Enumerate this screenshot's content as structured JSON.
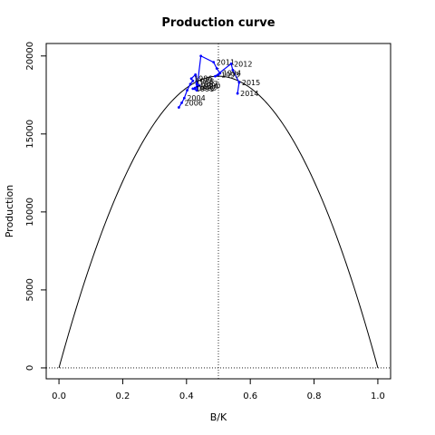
{
  "chart_data": {
    "type": "line",
    "title": "Production curve",
    "xlabel": "B/K",
    "ylabel": "Production",
    "xlim": [
      -0.04,
      1.04
    ],
    "ylim": [
      -700,
      20800
    ],
    "x_ticks": [
      0.0,
      0.2,
      0.4,
      0.6,
      0.8,
      1.0
    ],
    "x_tick_labels": [
      "0.0",
      "0.2",
      "0.4",
      "0.6",
      "0.8",
      "1.0"
    ],
    "y_ticks": [
      0,
      5000,
      10000,
      15000,
      20000
    ],
    "y_tick_labels": [
      "0",
      "5000",
      "10000",
      "15000",
      "20000"
    ],
    "reference_lines": {
      "bmsy_ratio": 0.5,
      "zero_production": 0
    },
    "curve": {
      "shape": "parabola",
      "msy": 18700,
      "color": "#000000"
    },
    "series": [
      {
        "color": "#0000ff",
        "points": [
          {
            "label": "",
            "x": 0.376,
            "y": 16700
          },
          {
            "label": "2006",
            "x": 0.385,
            "y": 17000
          },
          {
            "label": "2004",
            "x": 0.393,
            "y": 17300
          },
          {
            "label": "",
            "x": 0.402,
            "y": 17800
          },
          {
            "label": "",
            "x": 0.412,
            "y": 18200
          },
          {
            "label": "1988",
            "x": 0.42,
            "y": 18400
          },
          {
            "label": "1986",
            "x": 0.415,
            "y": 18550
          },
          {
            "label": "",
            "x": 0.428,
            "y": 18800
          },
          {
            "label": "1987",
            "x": 0.432,
            "y": 18200
          },
          {
            "label": "1990",
            "x": 0.44,
            "y": 18100
          },
          {
            "label": "1989",
            "x": 0.433,
            "y": 18050
          },
          {
            "label": "1992",
            "x": 0.427,
            "y": 17950
          },
          {
            "label": "1991",
            "x": 0.42,
            "y": 17900
          },
          {
            "label": "",
            "x": 0.432,
            "y": 17800
          },
          {
            "label": "",
            "x": 0.445,
            "y": 20000
          },
          {
            "label": "2011",
            "x": 0.485,
            "y": 19600
          },
          {
            "label": "",
            "x": 0.495,
            "y": 19200
          },
          {
            "label": "1994",
            "x": 0.505,
            "y": 18900
          },
          {
            "label": "1993",
            "x": 0.5,
            "y": 18800
          },
          {
            "label": "",
            "x": 0.49,
            "y": 18700
          },
          {
            "label": "2012",
            "x": 0.54,
            "y": 19500
          },
          {
            "label": "",
            "x": 0.545,
            "y": 19100
          },
          {
            "label": "2015",
            "x": 0.565,
            "y": 18300
          },
          {
            "label": "2014",
            "x": 0.56,
            "y": 17600
          }
        ]
      }
    ]
  }
}
